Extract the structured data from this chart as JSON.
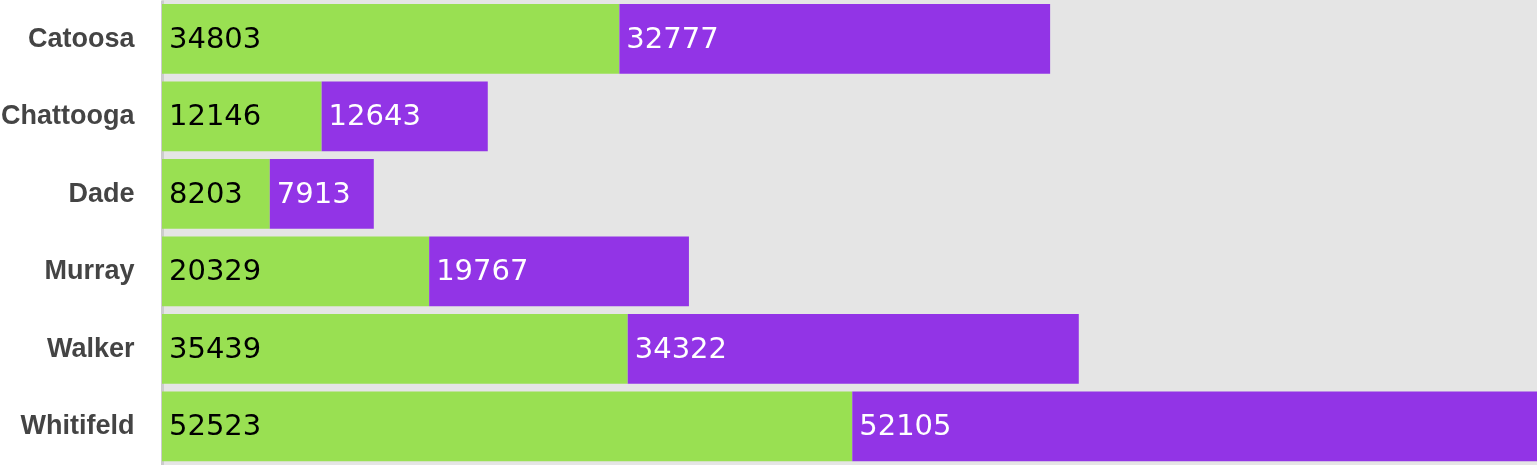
{
  "chart_data": {
    "type": "bar",
    "orientation": "horizontal",
    "stacked": true,
    "data_labels": true,
    "grid": false,
    "categories": [
      "Catoosa",
      "Chattooga",
      "Dade",
      "Murray",
      "Walker",
      "Whitifeld"
    ],
    "series": [
      {
        "color": "#99e052",
        "values": [
          34803,
          12146,
          8203,
          20329,
          35439,
          52523
        ]
      },
      {
        "color": "#9234e6",
        "values": [
          32777,
          12643,
          7913,
          19767,
          34322,
          52105
        ]
      }
    ]
  }
}
